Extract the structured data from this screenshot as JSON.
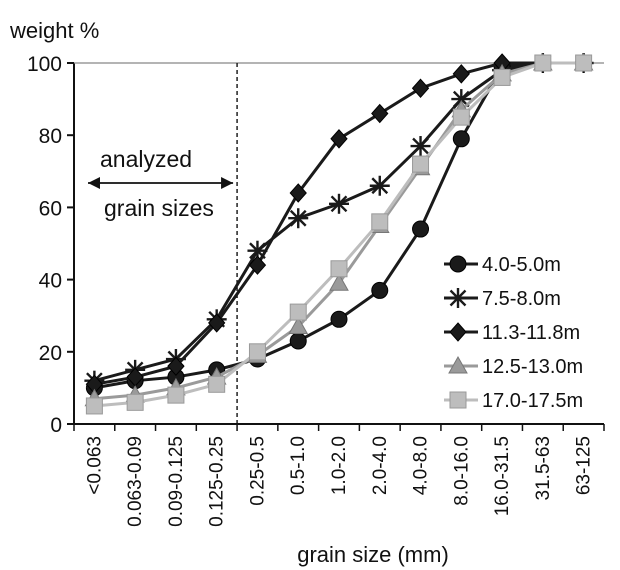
{
  "chart_data": {
    "type": "line",
    "ylabel": "weight  %",
    "xlabel": "grain size (mm)",
    "ylim": [
      0,
      100
    ],
    "yticks": [
      "0",
      "20",
      "40",
      "60",
      "80",
      "100"
    ],
    "categories": [
      "<0.063",
      "0.063-0.09",
      "0.09-0.125",
      "0.125-0.25",
      "0.25-0.5",
      "0.5-1.0",
      "1.0-2.0",
      "2.0-4.0",
      "4.0-8.0",
      "8.0-16.0",
      "16.0-31.5",
      "31.5-63",
      "63-125"
    ],
    "annotation": {
      "line1": "analyzed",
      "line2": "grain  sizes",
      "divider_after_category": "0.125-0.25"
    },
    "legend_position": "right",
    "grid": false,
    "series": [
      {
        "name": "4.0-5.0m",
        "marker": "circle",
        "color": "#1a1a1a",
        "values": [
          10,
          12,
          13,
          15,
          18,
          23,
          29,
          37,
          54,
          79,
          99,
          100,
          100
        ]
      },
      {
        "name": "7.5-8.0m",
        "marker": "asterisk",
        "color": "#1a1a1a",
        "values": [
          12,
          15,
          18,
          29,
          48,
          57,
          61,
          66,
          77,
          90,
          98,
          100,
          100
        ]
      },
      {
        "name": "11.3-11.8m",
        "marker": "diamond",
        "color": "#1a1a1a",
        "values": [
          11,
          13,
          16,
          28,
          44,
          64,
          79,
          86,
          93,
          97,
          100,
          100,
          100
        ]
      },
      {
        "name": "12.5-13.0m",
        "marker": "triangle",
        "color": "#9a9a9a",
        "values": [
          7,
          8,
          10,
          13,
          19,
          27,
          39,
          55,
          71,
          87,
          97,
          100,
          100
        ]
      },
      {
        "name": "17.0-17.5m",
        "marker": "square",
        "color": "#bdbdbd",
        "values": [
          5,
          6,
          8,
          11,
          20,
          31,
          43,
          56,
          72,
          85,
          96,
          100,
          100
        ]
      }
    ]
  }
}
